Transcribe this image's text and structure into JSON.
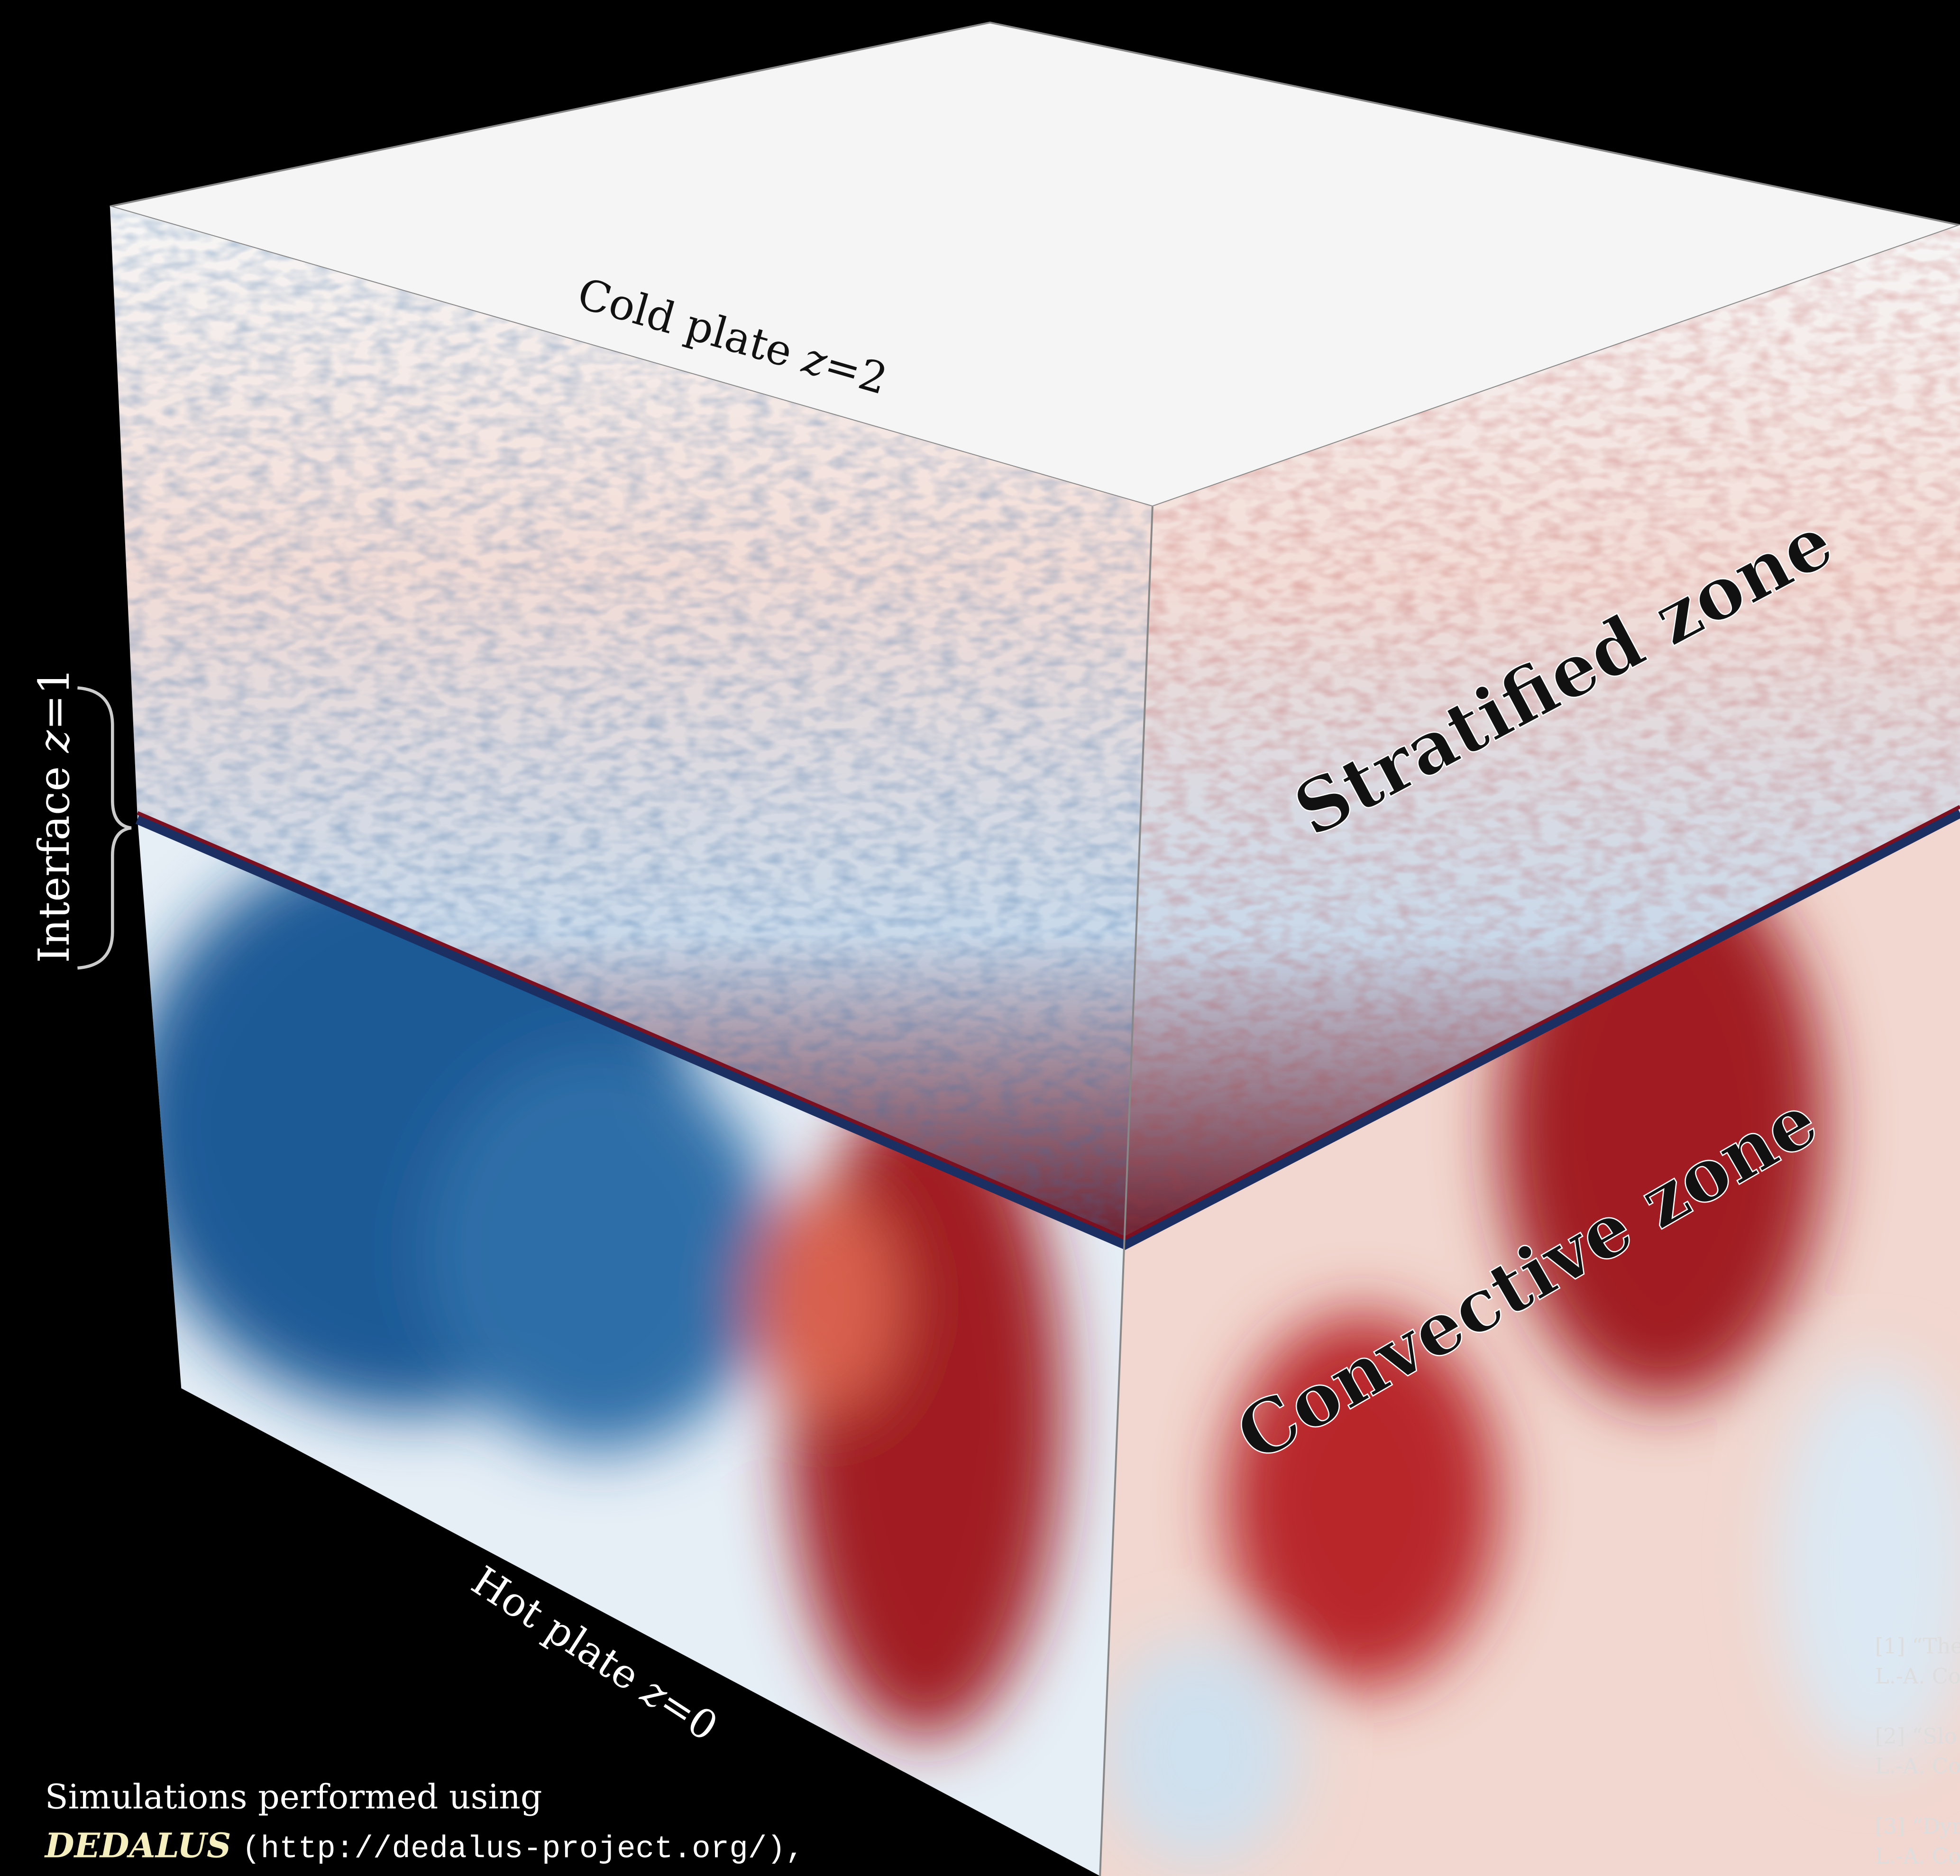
{
  "figure": {
    "top_label": {
      "text": "Cold plate ",
      "variable": "z",
      "suffix": "=2"
    },
    "interface_label": {
      "text": "Interface ",
      "variable": "z",
      "suffix": "=1"
    },
    "bottom_label": {
      "text": "Hot plate ",
      "variable": "z",
      "suffix": "=0"
    },
    "upper_zone": "Stratified zone",
    "lower_zone": "Convective zone",
    "credit": {
      "line1": "Simulations performed using",
      "code": "DEDALUS",
      "url": "(http://dedalus-project.org/),"
    },
    "references": [
      {
        "line1": "[1] “The",
        "line2": "L.-A. Co"
      },
      {
        "line1": "[2] “Slo",
        "line2": "L.-A. Co"
      },
      {
        "line1": "[3] “Dyn",
        "line2": "L.-A. Co"
      }
    ]
  }
}
